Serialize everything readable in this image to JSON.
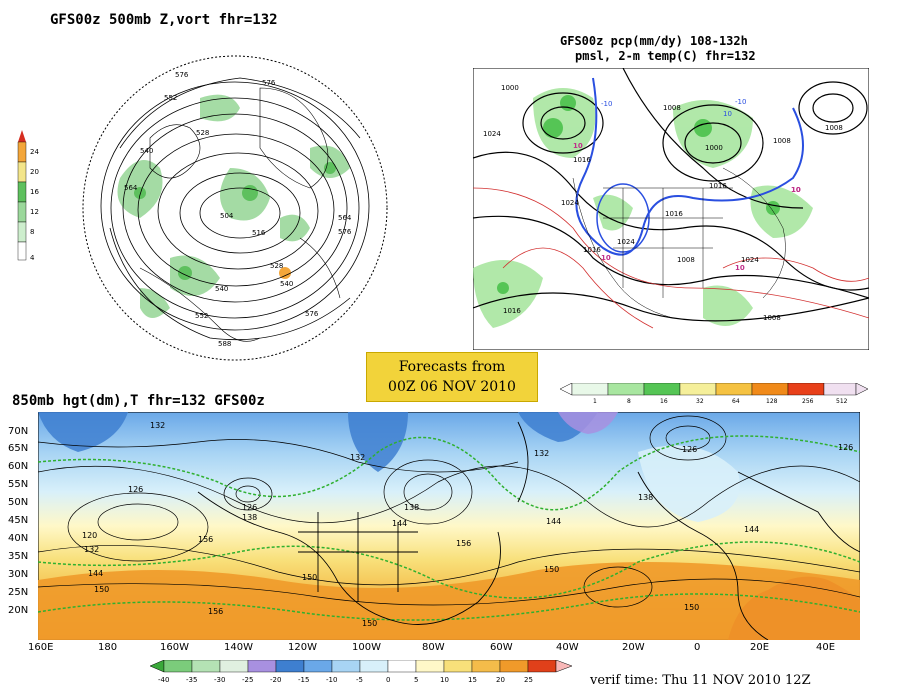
{
  "panel_500mb": {
    "title": "GFS00z   500mb Z,vort    fhr=132",
    "contour_labels": [
      "576",
      "576",
      "552",
      "540",
      "528",
      "564",
      "516",
      "504",
      "528",
      "540",
      "540",
      "552",
      "576",
      "564",
      "576",
      "588"
    ],
    "colorbar": {
      "labels": [
        "24",
        "20",
        "16",
        "12",
        "8",
        "4"
      ],
      "colors": [
        "#d62d20",
        "#f3a63a",
        "#f3e58a",
        "#5ec05e",
        "#9bd89b",
        "#cdeecd"
      ]
    }
  },
  "panel_precip": {
    "title_line1": "GFS00z pcp(mm/dy) 108-132h",
    "title_line2": "pmsl, 2-m temp(C)  fhr=132",
    "isobar_labels": [
      "1000",
      "1024",
      "1008",
      "1000",
      "1016",
      "1008",
      "1016",
      "1024",
      "1024",
      "1008",
      "1016",
      "1016",
      "1008",
      "1024",
      "1016",
      "1008"
    ],
    "temp_labels": [
      "10",
      "10",
      "10",
      "10",
      "10",
      "-10",
      "-10",
      "10"
    ],
    "colorbar": {
      "labels": [
        "1",
        "8",
        "16",
        "32",
        "64",
        "128",
        "256",
        "512"
      ],
      "colors": [
        "#e8f8e8",
        "#a8e6a0",
        "#55c555",
        "#f5ef9a",
        "#f5c242",
        "#f08a1a",
        "#e8401a",
        "#f0e0f0"
      ]
    }
  },
  "forecast_box": {
    "line1": "Forecasts from",
    "line2": "00Z 06 NOV 2010"
  },
  "panel_850mb": {
    "title": "850mb hgt(dm),T  fhr=132 GFS00z",
    "lat_labels": [
      "70N",
      "65N",
      "60N",
      "55N",
      "50N",
      "45N",
      "40N",
      "35N",
      "30N",
      "25N",
      "20N"
    ],
    "lon_labels": [
      "160E",
      "180",
      "160W",
      "140W",
      "120W",
      "100W",
      "80W",
      "60W",
      "40W",
      "20W",
      "0",
      "20E",
      "40E"
    ],
    "height_labels": [
      "132",
      "126",
      "120",
      "132",
      "144",
      "150",
      "132",
      "138",
      "156",
      "144",
      "126",
      "138",
      "144",
      "132",
      "126",
      "138",
      "150",
      "156",
      "150",
      "156",
      "150",
      "150",
      "144",
      "126"
    ],
    "colorbar": {
      "labels": [
        "-40",
        "-35",
        "-30",
        "-25",
        "-20",
        "-15",
        "-10",
        "-5",
        "0",
        "5",
        "10",
        "15",
        "20",
        "25"
      ],
      "colors": [
        "#3aa83a",
        "#7bcc7b",
        "#b4e2b4",
        "#e0f0e0",
        "#a890e0",
        "#3e7fd0",
        "#6aa8e8",
        "#a8d4f4",
        "#d8f0fa",
        "#fff8c8",
        "#f8e07a",
        "#f4bc4a",
        "#f09a2a",
        "#e0401a",
        "#f8b8b8"
      ]
    },
    "verif_time": "verif time: Thu 11 NOV 2010 12Z"
  }
}
